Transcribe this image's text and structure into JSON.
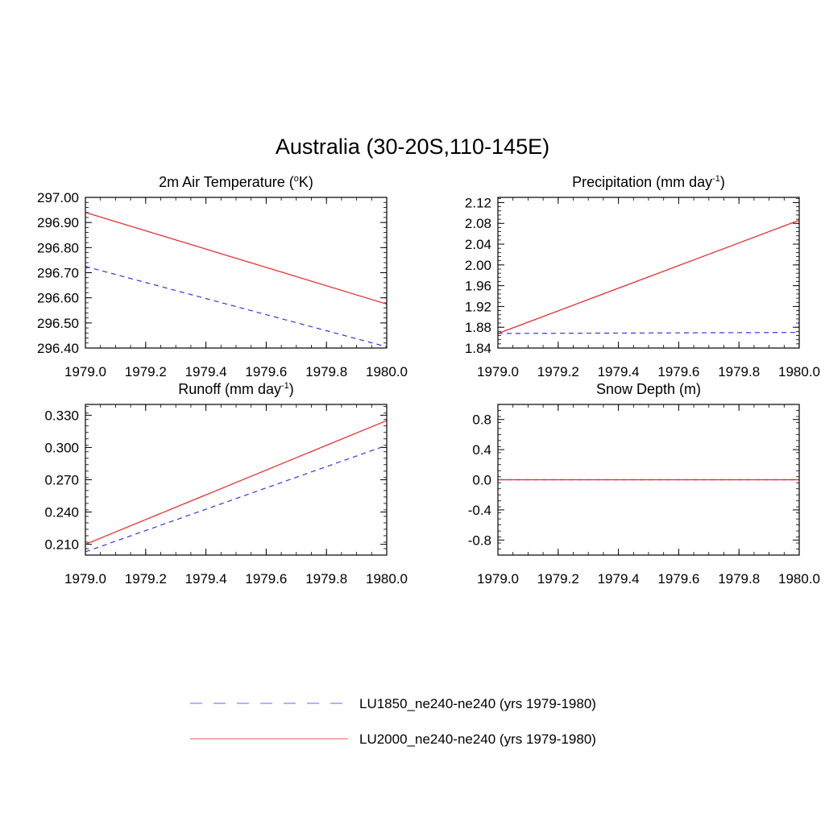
{
  "figure": {
    "title": "Australia (30-20S,110-145E)"
  },
  "legend": {
    "placement": "bottom-center",
    "entries": [
      {
        "label": "LU1850_ne240-ne240 (yrs 1979-1980)",
        "color": "#3333ee",
        "style": "dashed"
      },
      {
        "label": "LU2000_ne240-ne240 (yrs 1979-1980)",
        "color": "#ee2222",
        "style": "solid"
      }
    ]
  },
  "chart_data": [
    {
      "type": "line",
      "title": "2m Air Temperature (",
      "title_sup": "o",
      "title_end": "K)",
      "xlabel": "",
      "ylabel": "",
      "xlim": [
        1979.0,
        1980.0
      ],
      "ylim": [
        296.4,
        297.0
      ],
      "xticks": [
        "1979.0",
        "1979.2",
        "1979.4",
        "1979.6",
        "1979.8",
        "1980.0"
      ],
      "yticks": [
        "297.00",
        "296.90",
        "296.80",
        "296.70",
        "296.60",
        "296.50",
        "296.40"
      ],
      "series": [
        {
          "name": "LU1850_ne240-ne240 (yrs 1979-1980)",
          "color": "#3333ee",
          "dash": true,
          "x": [
            1979.0,
            1980.0
          ],
          "y": [
            296.725,
            296.405
          ]
        },
        {
          "name": "LU2000_ne240-ne240 (yrs 1979-1980)",
          "color": "#ee2222",
          "dash": false,
          "x": [
            1979.0,
            1980.0
          ],
          "y": [
            296.94,
            296.575
          ]
        }
      ],
      "grid": false
    },
    {
      "type": "line",
      "title": "Precipitation (mm day",
      "title_sup": "-1",
      "title_end": ")",
      "xlabel": "",
      "ylabel": "",
      "xlim": [
        1979.0,
        1980.0
      ],
      "ylim": [
        1.84,
        2.13
      ],
      "xticks": [
        "1979.0",
        "1979.2",
        "1979.4",
        "1979.6",
        "1979.8",
        "1980.0"
      ],
      "yticks": [
        "2.12",
        "2.08",
        "2.04",
        "2.00",
        "1.96",
        "1.92",
        "1.88",
        "1.84"
      ],
      "series": [
        {
          "name": "LU1850_ne240-ne240 (yrs 1979-1980)",
          "color": "#3333ee",
          "dash": true,
          "x": [
            1979.0,
            1980.0
          ],
          "y": [
            1.868,
            1.87
          ]
        },
        {
          "name": "LU2000_ne240-ne240 (yrs 1979-1980)",
          "color": "#ee2222",
          "dash": false,
          "x": [
            1979.0,
            1980.0
          ],
          "y": [
            1.868,
            2.086
          ]
        }
      ],
      "grid": false
    },
    {
      "type": "line",
      "title": "Runoff (mm day",
      "title_sup": "-1",
      "title_end": ")",
      "xlabel": "",
      "ylabel": "",
      "xlim": [
        1979.0,
        1980.0
      ],
      "ylim": [
        0.2,
        0.34
      ],
      "xticks": [
        "1979.0",
        "1979.2",
        "1979.4",
        "1979.6",
        "1979.8",
        "1980.0"
      ],
      "yticks": [
        "0.330",
        "0.300",
        "0.270",
        "0.240",
        "0.210"
      ],
      "series": [
        {
          "name": "LU1850_ne240-ne240 (yrs 1979-1980)",
          "color": "#3333ee",
          "dash": true,
          "x": [
            1979.0,
            1980.0
          ],
          "y": [
            0.203,
            0.302
          ]
        },
        {
          "name": "LU2000_ne240-ne240 (yrs 1979-1980)",
          "color": "#ee2222",
          "dash": false,
          "x": [
            1979.0,
            1980.0
          ],
          "y": [
            0.21,
            0.325
          ]
        }
      ],
      "grid": false
    },
    {
      "type": "line",
      "title": "Snow Depth (m)",
      "title_sup": "",
      "title_end": "",
      "xlabel": "",
      "ylabel": "",
      "xlim": [
        1979.0,
        1980.0
      ],
      "ylim": [
        -1.0,
        1.0
      ],
      "xticks": [
        "1979.0",
        "1979.2",
        "1979.4",
        "1979.6",
        "1979.8",
        "1980.0"
      ],
      "yticks": [
        "0.8",
        "0.4",
        "0.0",
        "-0.4",
        "-0.8"
      ],
      "series": [
        {
          "name": "LU1850_ne240-ne240 (yrs 1979-1980)",
          "color": "#3333ee",
          "dash": true,
          "x": [
            1979.0,
            1980.0
          ],
          "y": [
            0.0,
            0.0
          ]
        },
        {
          "name": "LU2000_ne240-ne240 (yrs 1979-1980)",
          "color": "#ee2222",
          "dash": false,
          "x": [
            1979.0,
            1980.0
          ],
          "y": [
            0.0,
            0.0
          ]
        }
      ],
      "grid": false
    }
  ]
}
